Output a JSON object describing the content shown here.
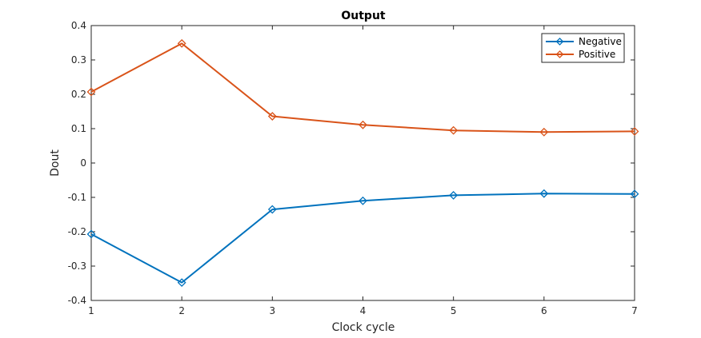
{
  "chart_data": {
    "type": "line",
    "title": "Output",
    "xlabel": "Clock cycle",
    "ylabel": "Dout",
    "x": [
      1,
      2,
      3,
      4,
      5,
      6,
      7
    ],
    "xlim": [
      1,
      7
    ],
    "ylim": [
      -0.4,
      0.4
    ],
    "xticks": [
      1,
      2,
      3,
      4,
      5,
      6,
      7
    ],
    "yticks": [
      -0.4,
      -0.3,
      -0.2,
      -0.1,
      0,
      0.1,
      0.2,
      0.3,
      0.4
    ],
    "ytick_labels": [
      "-0.4",
      "-0.3",
      "-0.2",
      "-0.1",
      "0",
      "0.1",
      "0.2",
      "0.3",
      "0.4"
    ],
    "grid": false,
    "legend_position": "top-right",
    "series": [
      {
        "name": "Negative",
        "color": "#0072BD",
        "marker": "diamond",
        "values": [
          -0.207,
          -0.348,
          -0.135,
          -0.11,
          -0.094,
          -0.089,
          -0.09
        ]
      },
      {
        "name": "Positive",
        "color": "#D95319",
        "marker": "diamond",
        "values": [
          0.207,
          0.348,
          0.136,
          0.111,
          0.095,
          0.09,
          0.092
        ]
      }
    ]
  }
}
